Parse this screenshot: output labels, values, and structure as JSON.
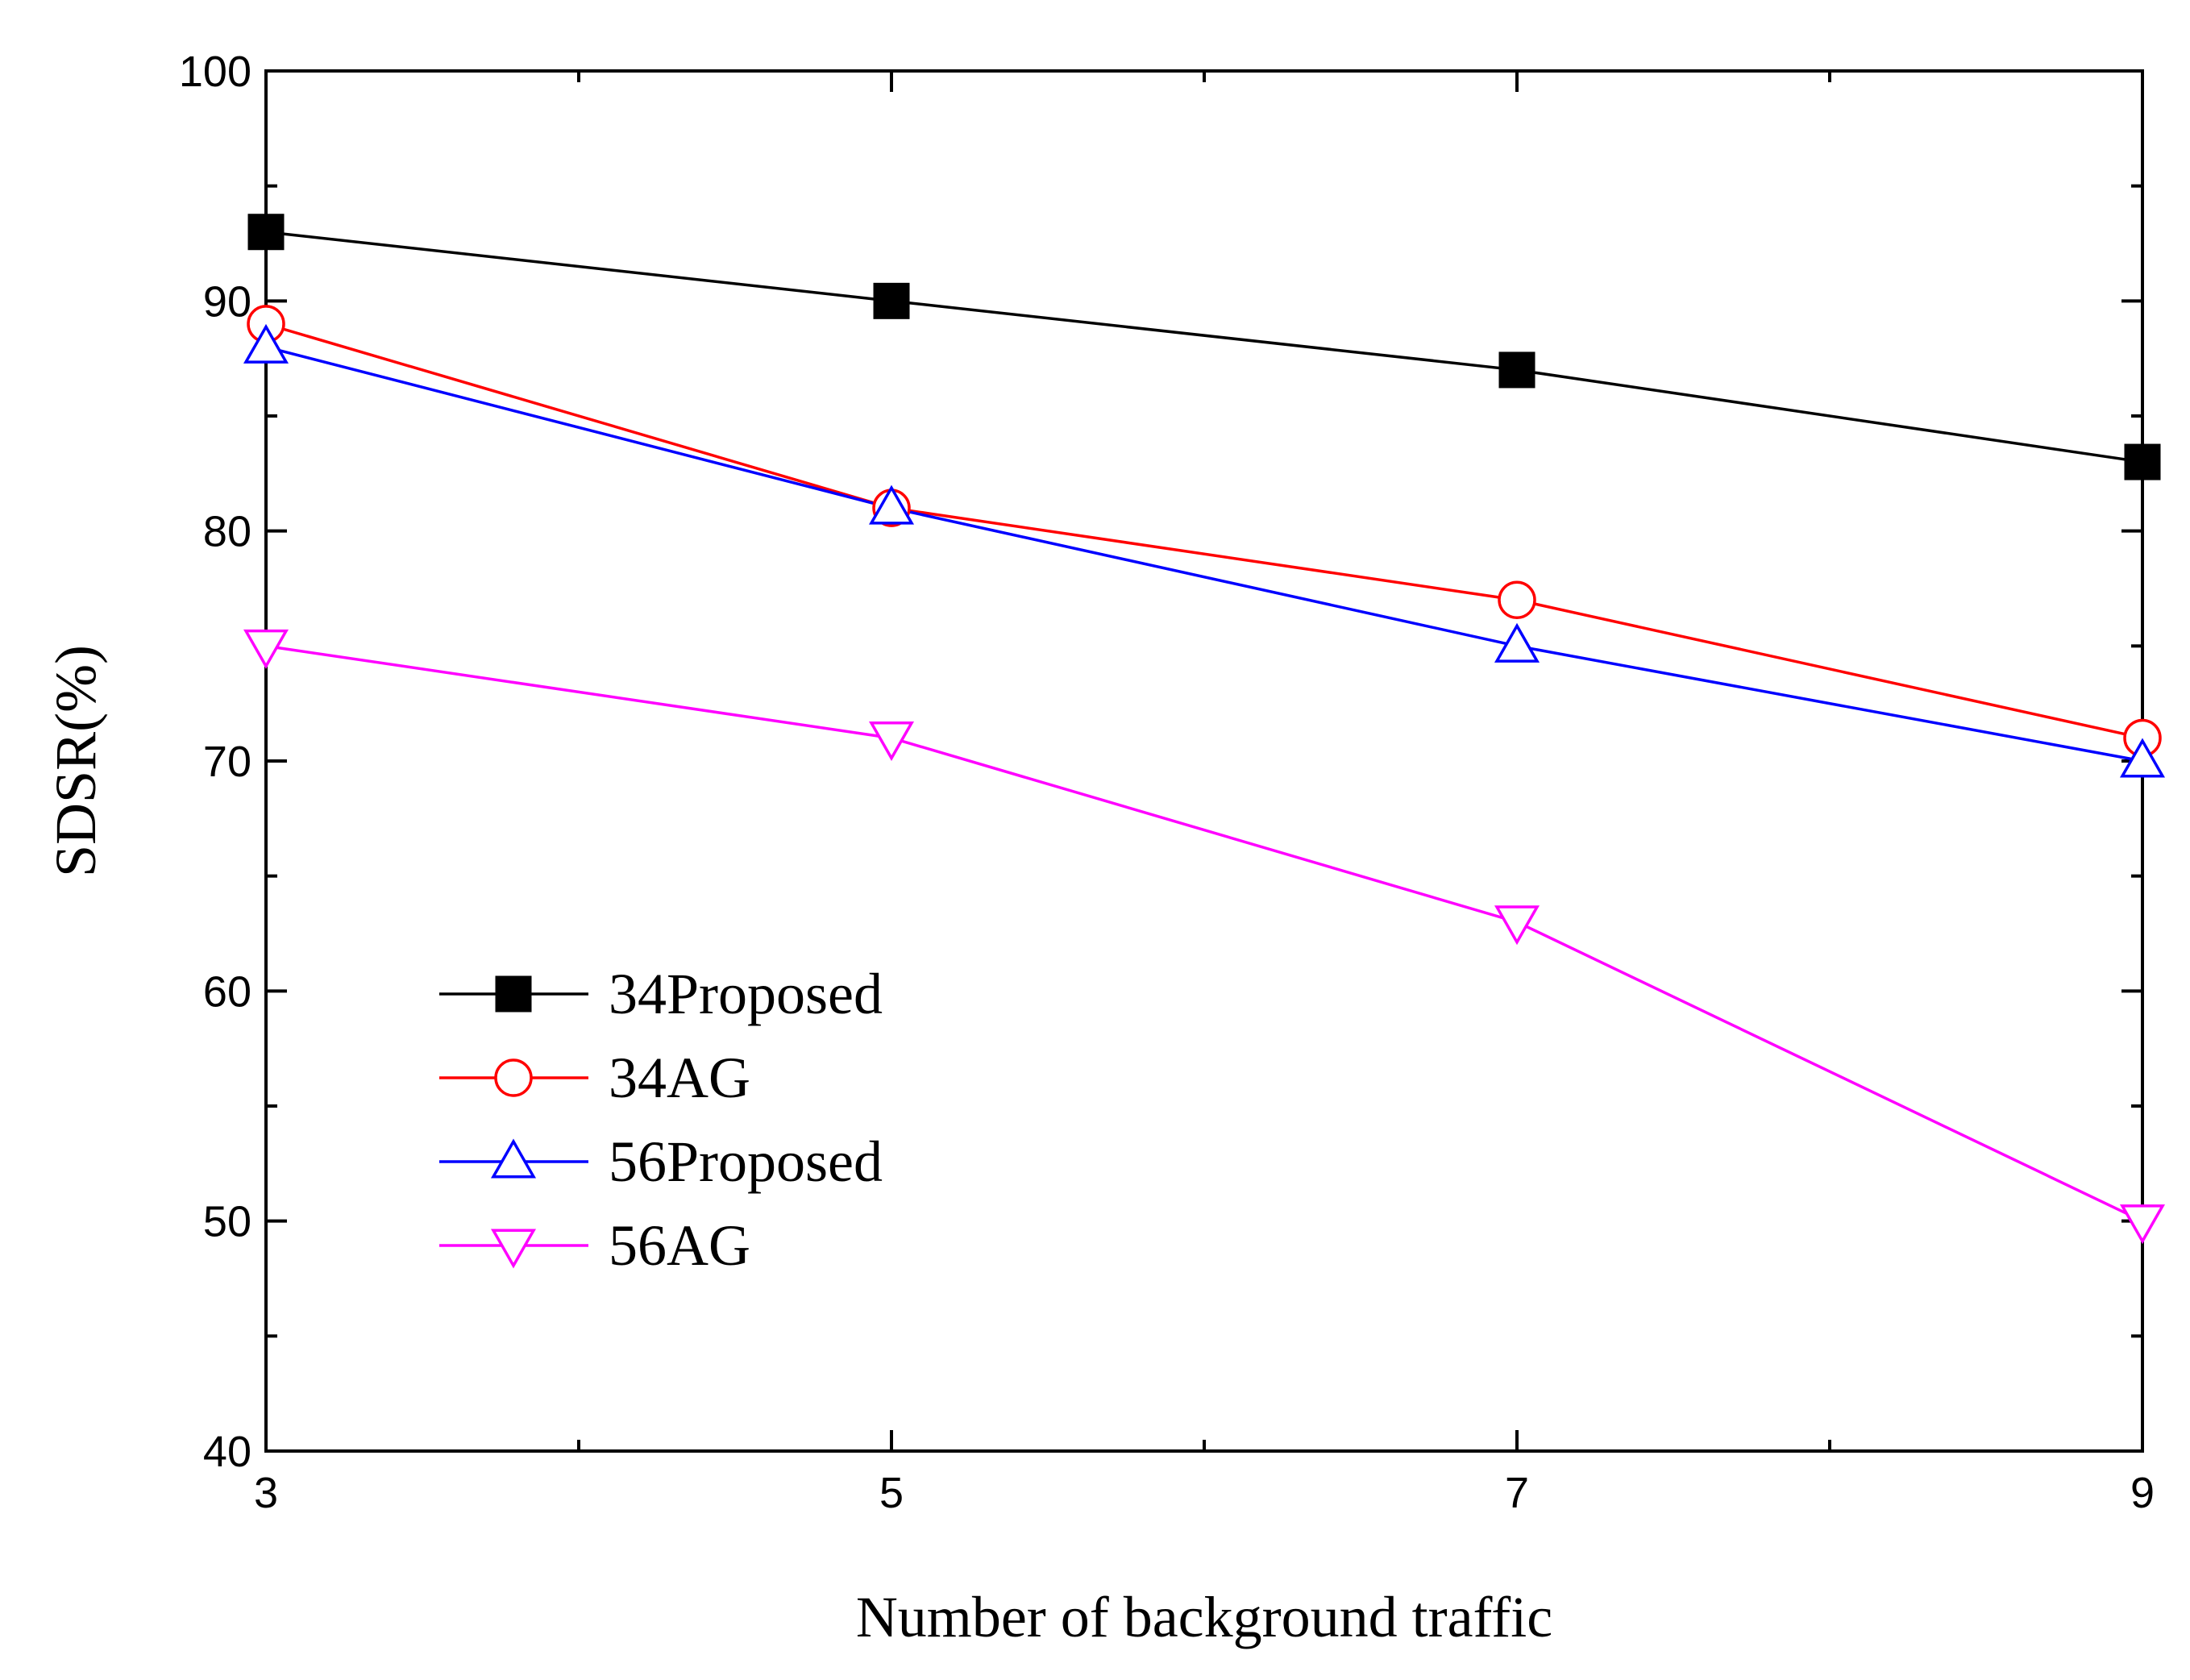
{
  "chart_data": {
    "type": "line",
    "title": "",
    "xlabel": "Number of background traffic",
    "ylabel": "SDSR(%)",
    "x": [
      3,
      5,
      7,
      9
    ],
    "xlim": [
      3,
      9
    ],
    "ylim": [
      40,
      100
    ],
    "xticks": [
      3,
      5,
      7,
      9
    ],
    "xtick_labels": [
      "3",
      "5",
      "7",
      "9"
    ],
    "yticks": [
      40,
      50,
      60,
      70,
      80,
      90,
      100
    ],
    "ytick_labels": [
      "40",
      "50",
      "60",
      "70",
      "80",
      "90",
      "100"
    ],
    "grid": false,
    "legend_position": "bottom-left",
    "series": [
      {
        "name": "34Proposed",
        "values": [
          93,
          90,
          87,
          83
        ],
        "color": "#000000",
        "marker": "filled-square"
      },
      {
        "name": "34AG",
        "values": [
          89,
          81,
          77,
          71
        ],
        "color": "#ff0000",
        "marker": "open-circle"
      },
      {
        "name": "56Proposed",
        "values": [
          88,
          81,
          75,
          70
        ],
        "color": "#0000ff",
        "marker": "open-triangle-up"
      },
      {
        "name": "56AG",
        "values": [
          75,
          71,
          63,
          50
        ],
        "color": "#ff00ff",
        "marker": "open-triangle-down"
      }
    ]
  }
}
